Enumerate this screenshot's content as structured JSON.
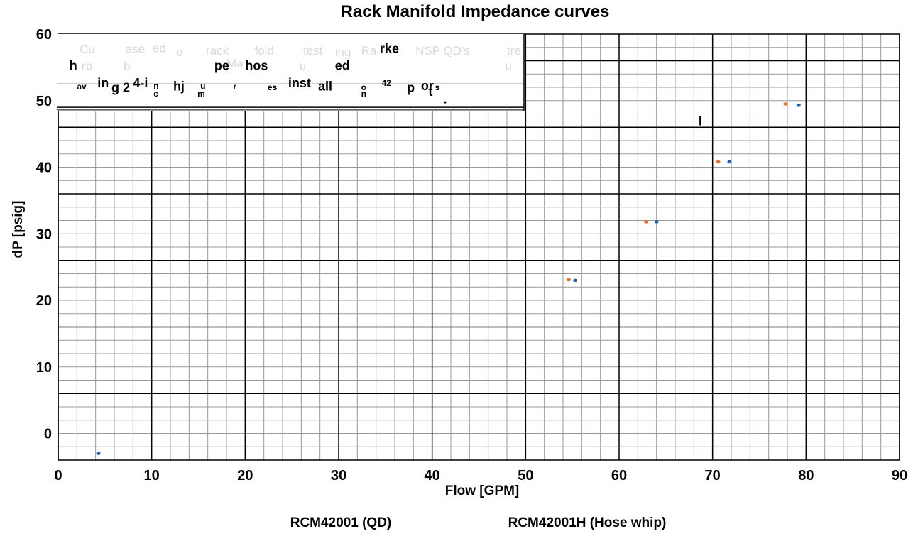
{
  "colors": {
    "series_qd": "#1f5fb4",
    "series_hose": "#e8702a",
    "grid_major": "#000000",
    "grid_minor": "#999999"
  },
  "chart_data": {
    "type": "scatter",
    "title": "Rack Manifold Impedance curves",
    "xlabel": "Flow [GPM]",
    "ylabel": "dP [psig]",
    "xlim": [
      0,
      90
    ],
    "ylim": [
      -4,
      60
    ],
    "x_ticks": [
      "0",
      "10",
      "20",
      "30",
      "40",
      "50",
      "60",
      "70",
      "80",
      "90"
    ],
    "y_ticks": [
      "0",
      "10",
      "20",
      "30",
      "40",
      "50",
      "60"
    ],
    "grid": true,
    "legend_position": "bottom",
    "series": [
      {
        "name": "RCM42001 (QD)",
        "color": "#1f5fb4",
        "points": [
          [
            4.3,
            -3.0
          ],
          [
            55.3,
            23.0
          ],
          [
            64.0,
            31.8
          ],
          [
            71.8,
            40.8
          ],
          [
            79.2,
            49.3
          ]
        ]
      },
      {
        "name": "RCM42001H (Hose whip)",
        "color": "#e8702a",
        "points": [
          [
            54.6,
            23.1
          ],
          [
            62.9,
            31.8
          ],
          [
            70.6,
            40.8
          ],
          [
            77.8,
            49.5
          ]
        ]
      }
    ],
    "annotation_fragments": [
      {
        "text": "h",
        "cls": "frag",
        "x": 1.2,
        "y": 54.6
      },
      {
        "text": "av",
        "cls": "fragsm",
        "x": 2.0,
        "y": 51.7
      },
      {
        "text": "in",
        "cls": "frag",
        "x": 4.2,
        "y": 52.0
      },
      {
        "text": "g 2",
        "cls": "frag",
        "x": 5.7,
        "y": 51.3
      },
      {
        "text": "4-i",
        "cls": "frag",
        "x": 8.0,
        "y": 52.0
      },
      {
        "text": "n",
        "cls": "fragsm",
        "x": 10.2,
        "y": 51.8
      },
      {
        "text": "c",
        "cls": "fragsm",
        "x": 10.2,
        "y": 50.6
      },
      {
        "text": "hj",
        "cls": "frag",
        "x": 12.3,
        "y": 51.5
      },
      {
        "text": "u",
        "cls": "fragsm",
        "x": 15.2,
        "y": 51.8
      },
      {
        "text": "m",
        "cls": "fragsm",
        "x": 14.9,
        "y": 50.6
      },
      {
        "text": "pe",
        "cls": "frag",
        "x": 16.7,
        "y": 54.6
      },
      {
        "text": "hos",
        "cls": "frag",
        "x": 20.0,
        "y": 54.6
      },
      {
        "text": "r",
        "cls": "fragsm",
        "x": 18.7,
        "y": 51.7
      },
      {
        "text": "es",
        "cls": "fragsm",
        "x": 22.4,
        "y": 51.6
      },
      {
        "text": "inst",
        "cls": "frag",
        "x": 24.6,
        "y": 52.0
      },
      {
        "text": "all",
        "cls": "frag",
        "x": 27.8,
        "y": 51.5
      },
      {
        "text": "ed",
        "cls": "frag",
        "x": 29.6,
        "y": 54.6
      },
      {
        "text": "rke",
        "cls": "frag",
        "x": 34.4,
        "y": 57.2
      },
      {
        "text": "o",
        "cls": "fragsm",
        "x": 32.4,
        "y": 51.6
      },
      {
        "text": "n",
        "cls": "fragsm",
        "x": 32.4,
        "y": 50.6
      },
      {
        "text": "42",
        "cls": "fragsm",
        "x": 34.6,
        "y": 52.2
      },
      {
        "text": "p",
        "cls": "frag",
        "x": 37.3,
        "y": 51.3
      },
      {
        "text": "or",
        "cls": "frag",
        "x": 38.8,
        "y": 51.6
      },
      {
        "text": "t",
        "cls": "frag",
        "x": 39.6,
        "y": 50.7
      },
      {
        "text": "s",
        "cls": "fragsm",
        "x": 40.3,
        "y": 51.6
      },
      {
        "text": ".",
        "cls": "frag",
        "x": 41.2,
        "y": 49.6
      },
      {
        "text": "l",
        "cls": "frag",
        "x": 68.5,
        "y": 46.3
      }
    ],
    "ghost_fragments": [
      {
        "text": "Cu",
        "x": 2.3,
        "y": 57.1
      },
      {
        "text": "rb",
        "x": 2.5,
        "y": 54.6
      },
      {
        "text": "ase",
        "x": 7.2,
        "y": 57.2
      },
      {
        "text": "ed",
        "x": 10.1,
        "y": 57.3
      },
      {
        "text": "o",
        "x": 12.6,
        "y": 56.7
      },
      {
        "text": "rack",
        "x": 15.8,
        "y": 56.9
      },
      {
        "text": "Ma",
        "x": 18.0,
        "y": 55.0
      },
      {
        "text": "fold",
        "x": 21.0,
        "y": 56.9
      },
      {
        "text": "test",
        "x": 26.2,
        "y": 56.9
      },
      {
        "text": "ing",
        "x": 29.6,
        "y": 56.7
      },
      {
        "text": "Ra",
        "x": 32.4,
        "y": 56.9
      },
      {
        "text": "NSP QD's",
        "x": 38.2,
        "y": 56.9
      },
      {
        "text": "tre",
        "x": 48.0,
        "y": 56.9
      },
      {
        "text": "b",
        "x": 7.0,
        "y": 54.6
      },
      {
        "text": "u",
        "x": 25.8,
        "y": 54.6
      },
      {
        "text": "u",
        "x": 47.8,
        "y": 54.6
      }
    ]
  }
}
